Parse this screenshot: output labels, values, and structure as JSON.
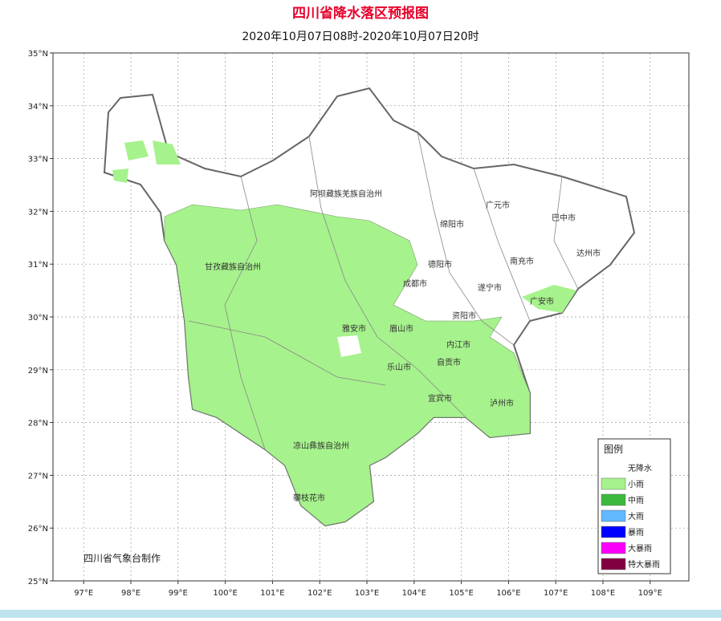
{
  "title": "四川省降水落区预报图",
  "subtitle": "2020年10月07日08时-2020年10月07日20时",
  "lat_ticks": [
    {
      "value": 35,
      "label": "35°N"
    },
    {
      "value": 34,
      "label": "34°N"
    },
    {
      "value": 33,
      "label": "33°N"
    },
    {
      "value": 32,
      "label": "32°N"
    },
    {
      "value": 31,
      "label": "31°N"
    },
    {
      "value": 30,
      "label": "30°N"
    },
    {
      "value": 29,
      "label": "29°N"
    },
    {
      "value": 28,
      "label": "28°N"
    },
    {
      "value": 27,
      "label": "27°N"
    },
    {
      "value": 26,
      "label": "26°N"
    },
    {
      "value": 25,
      "label": "25°N"
    }
  ],
  "lon_ticks": [
    {
      "value": 97,
      "label": "97°E"
    },
    {
      "value": 98,
      "label": "98°E"
    },
    {
      "value": 99,
      "label": "99°E"
    },
    {
      "value": 100,
      "label": "100°E"
    },
    {
      "value": 101,
      "label": "101°E"
    },
    {
      "value": 102,
      "label": "102°E"
    },
    {
      "value": 103,
      "label": "103°E"
    },
    {
      "value": 104,
      "label": "104°E"
    },
    {
      "value": 105,
      "label": "105°E"
    },
    {
      "value": 106,
      "label": "106°E"
    },
    {
      "value": 107,
      "label": "107°E"
    },
    {
      "value": 108,
      "label": "108°E"
    },
    {
      "value": 109,
      "label": "109°E"
    }
  ],
  "lonlim": [
    96.35,
    109.82
  ],
  "latlim": [
    25,
    35
  ],
  "cities": [
    "阿坝藏族羌族自治州",
    "广元市",
    "巴中市",
    "绵阳市",
    "达州市",
    "甘孜藏族自治州",
    "德阳市",
    "南充市",
    "成都市",
    "遂宁市",
    "广安市",
    "资阳市",
    "雅安市",
    "眉山市",
    "内江市",
    "自贡市",
    "乐山市",
    "宜宾市",
    "泸州市",
    "凉山彝族自治州",
    "攀枝花市"
  ],
  "legend": {
    "title": "图例",
    "items": [
      {
        "name": "无降水",
        "color": "#ffffff"
      },
      {
        "name": "小雨",
        "color": "#a6f28c"
      },
      {
        "name": "中雨",
        "color": "#3dba3d"
      },
      {
        "name": "大雨",
        "color": "#61b8ff"
      },
      {
        "name": "暴雨",
        "color": "#0000fe"
      },
      {
        "name": "大暴雨",
        "color": "#fa00fa"
      },
      {
        "name": "特大暴雨",
        "color": "#810040"
      }
    ]
  },
  "credit": "四川省气象台制作"
}
